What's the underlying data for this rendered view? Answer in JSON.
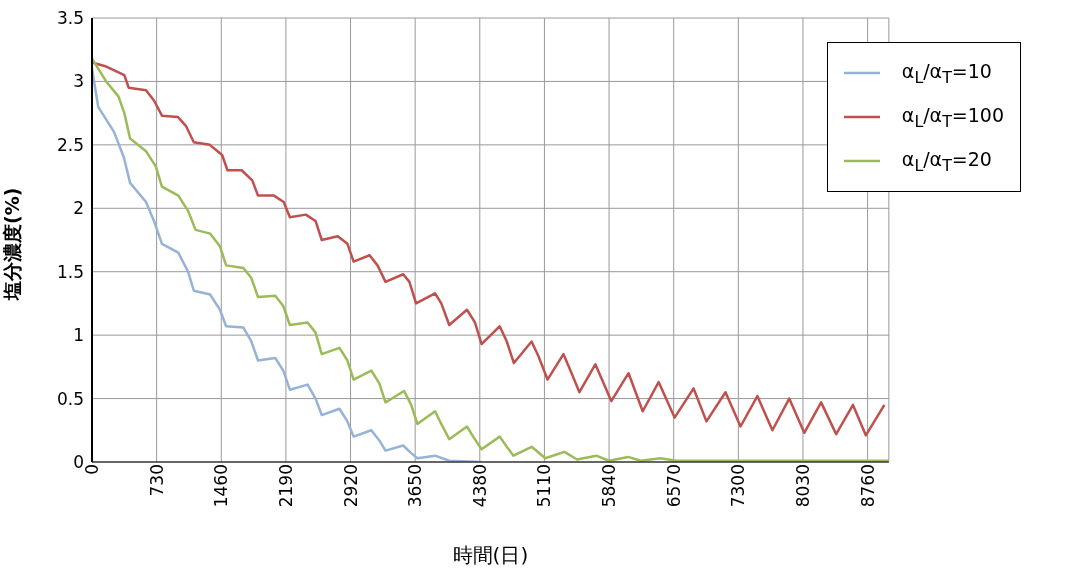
{
  "chart_data": {
    "type": "line",
    "xlabel": "時間(日)",
    "ylabel": "塩分濃度(%)",
    "xlim": [
      0,
      9000
    ],
    "xticks": [
      0,
      730,
      1460,
      2190,
      2920,
      3650,
      4380,
      5110,
      5840,
      6570,
      7300,
      8030,
      8760
    ],
    "ylim": [
      0,
      3.5
    ],
    "yticks": [
      0,
      0.5,
      1,
      1.5,
      2,
      2.5,
      3,
      3.5
    ],
    "grid": true,
    "legend": "top right",
    "marker": "none",
    "line_style": "solid",
    "series": [
      {
        "name": "α$_{L}$/α$_{T}$=10",
        "color": "#95b3d7",
        "x": [
          0,
          70,
          250,
          360,
          430,
          610,
          700,
          790,
          975,
          1085,
          1150,
          1335,
          1445,
          1515,
          1710,
          1800,
          1875,
          2070,
          2160,
          2235,
          2435,
          2525,
          2595,
          2795,
          2885,
          2955,
          3155,
          3245,
          3315,
          3515,
          3605,
          3675,
          3875,
          4035,
          4400
        ],
        "values": [
          3.1,
          2.8,
          2.6,
          2.4,
          2.2,
          2.05,
          1.9,
          1.72,
          1.65,
          1.5,
          1.35,
          1.32,
          1.2,
          1.07,
          1.06,
          0.95,
          0.8,
          0.82,
          0.72,
          0.57,
          0.61,
          0.5,
          0.37,
          0.42,
          0.32,
          0.2,
          0.25,
          0.17,
          0.09,
          0.13,
          0.07,
          0.03,
          0.05,
          0.01,
          0
        ]
      },
      {
        "name": "α$_{L}$/α$_{T}$=100",
        "color": "#c0504d",
        "x": [
          0,
          150,
          365,
          415,
          610,
          700,
          790,
          970,
          1060,
          1150,
          1330,
          1470,
          1530,
          1690,
          1810,
          1875,
          2055,
          2165,
          2235,
          2415,
          2525,
          2595,
          2775,
          2885,
          2955,
          3135,
          3225,
          3315,
          3515,
          3585,
          3660,
          3875,
          3945,
          4035,
          4235,
          4325,
          4400,
          4605,
          4685,
          4765,
          4965,
          5045,
          5145,
          5325,
          5405,
          5505,
          5685,
          5865,
          6060,
          6220,
          6400,
          6580,
          6795,
          6940,
          7155,
          7325,
          7515,
          7685,
          7875,
          8045,
          8235,
          8405,
          8595,
          8740,
          8950
        ],
        "values": [
          3.15,
          3.12,
          3.05,
          2.95,
          2.93,
          2.85,
          2.73,
          2.72,
          2.65,
          2.52,
          2.5,
          2.42,
          2.3,
          2.3,
          2.22,
          2.1,
          2.1,
          2.05,
          1.93,
          1.95,
          1.9,
          1.75,
          1.78,
          1.72,
          1.58,
          1.63,
          1.55,
          1.42,
          1.48,
          1.42,
          1.25,
          1.33,
          1.25,
          1.08,
          1.2,
          1.1,
          0.93,
          1.07,
          0.95,
          0.78,
          0.95,
          0.83,
          0.65,
          0.85,
          0.72,
          0.55,
          0.77,
          0.48,
          0.7,
          0.4,
          0.63,
          0.35,
          0.58,
          0.32,
          0.55,
          0.28,
          0.52,
          0.25,
          0.5,
          0.23,
          0.47,
          0.22,
          0.45,
          0.21,
          0.45
        ]
      },
      {
        "name": "α$_{L}$/α$_{T}$=20",
        "color": "#9bbb59",
        "x": [
          0,
          160,
          300,
          365,
          430,
          610,
          720,
          790,
          975,
          1085,
          1170,
          1335,
          1445,
          1515,
          1710,
          1800,
          1875,
          2070,
          2160,
          2235,
          2435,
          2525,
          2595,
          2795,
          2885,
          2955,
          3155,
          3245,
          3315,
          3525,
          3605,
          3675,
          3875,
          3945,
          4035,
          4235,
          4305,
          4400,
          4605,
          4685,
          4760,
          4965,
          5120,
          5335,
          5480,
          5695,
          5840,
          6055,
          6200,
          6420,
          6600,
          7000,
          8000,
          9000
        ],
        "values": [
          3.18,
          3.0,
          2.88,
          2.75,
          2.55,
          2.45,
          2.33,
          2.17,
          2.1,
          1.98,
          1.83,
          1.8,
          1.7,
          1.55,
          1.53,
          1.45,
          1.3,
          1.31,
          1.23,
          1.08,
          1.1,
          1.02,
          0.85,
          0.9,
          0.8,
          0.65,
          0.72,
          0.62,
          0.47,
          0.56,
          0.45,
          0.3,
          0.4,
          0.3,
          0.18,
          0.28,
          0.2,
          0.1,
          0.2,
          0.12,
          0.05,
          0.12,
          0.03,
          0.08,
          0.02,
          0.05,
          0.01,
          0.04,
          0.01,
          0.03,
          0.01,
          0.01,
          0.01,
          0.01
        ]
      }
    ]
  }
}
